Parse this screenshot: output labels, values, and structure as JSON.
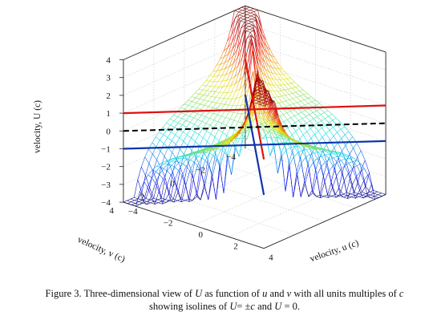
{
  "chart_data": {
    "type": "surface3d",
    "title": "",
    "xlabel": "velocity, u (c)",
    "ylabel": "velocity, v (c)",
    "zlabel": "velocity, U (c)",
    "xlim": [
      -4,
      4
    ],
    "ylim": [
      -4,
      4
    ],
    "zlim": [
      -4,
      4
    ],
    "x_ticks": [
      "−4",
      "−2",
      "0",
      "2",
      "4"
    ],
    "y_ticks": [
      "−4",
      "−2",
      "0",
      "2",
      "4"
    ],
    "z_ticks": [
      "4",
      "3",
      "2",
      "1",
      "0",
      "−1",
      "−2",
      "−3",
      "−4"
    ],
    "grid": true,
    "colormap": "jet",
    "isolines": [
      {
        "value": 1,
        "color": "#dd1111",
        "style": "solid",
        "x": [
          -4,
          4
        ],
        "y": [
          -4,
          4
        ],
        "z": [
          1,
          1
        ]
      },
      {
        "value": 1,
        "color": "#dd1111",
        "style": "solid",
        "x": [
          4,
          -4
        ],
        "y": [
          -4,
          4
        ],
        "z": [
          1,
          1
        ]
      },
      {
        "value": -1,
        "color": "#1133aa",
        "style": "solid",
        "x": [
          -4,
          4
        ],
        "y": [
          -4,
          4
        ],
        "z": [
          -1,
          -1
        ]
      },
      {
        "value": -1,
        "color": "#1133aa",
        "style": "solid",
        "x": [
          4,
          -4
        ],
        "y": [
          -4,
          4
        ],
        "z": [
          -1,
          -1
        ]
      },
      {
        "value": 0,
        "color": "#000000",
        "style": "dashed",
        "x": [
          -4,
          4
        ],
        "y": [
          4,
          -4
        ],
        "z": [
          0,
          0
        ]
      }
    ]
  },
  "caption": {
    "figure_label": "Figure 3.",
    "text_1": "Three-dimensional view of",
    "sym_U": "U",
    "text_2": "as function of",
    "sym_u": "u",
    "text_3": "and",
    "sym_v": "v",
    "text_4": "with all units multiples of",
    "sym_c": "c",
    "text_5": "showing isolines of",
    "sym_U2": "U",
    "text_6": "= ±",
    "sym_c2": "c",
    "text_7": "and",
    "sym_U3": "U",
    "text_8": "= 0."
  }
}
